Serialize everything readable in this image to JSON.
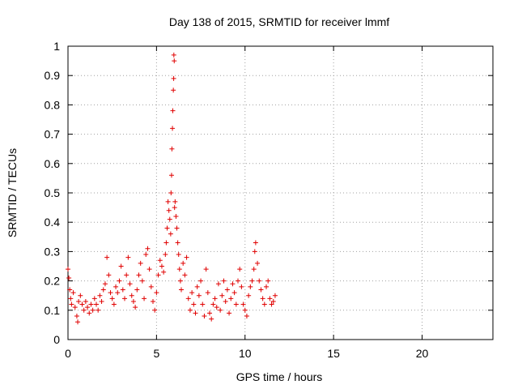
{
  "chart_data": {
    "type": "scatter",
    "title": "Day 138 of 2015, SRMTID for receiver lmmf",
    "xlabel": "GPS time / hours",
    "ylabel": "SRMTID / TECUs",
    "xlim": [
      0,
      24
    ],
    "ylim": [
      0,
      1
    ],
    "xticks": [
      "0",
      "5",
      "10",
      "15",
      "20"
    ],
    "xtick_values": [
      0,
      5,
      10,
      15,
      20
    ],
    "yticks": [
      "0",
      "0.1",
      "0.2",
      "0.3",
      "0.4",
      "0.5",
      "0.6",
      "0.7",
      "0.8",
      "0.9",
      "1"
    ],
    "ytick_values": [
      0,
      0.1,
      0.2,
      0.3,
      0.4,
      0.5,
      0.6,
      0.7,
      0.8,
      0.9,
      1
    ],
    "grid": true,
    "marker": "plus",
    "marker_color": "#e00000",
    "series": [
      {
        "points": [
          [
            0.0,
            0.24
          ],
          [
            0.05,
            0.21
          ],
          [
            0.1,
            0.17
          ],
          [
            0.15,
            0.14
          ],
          [
            0.2,
            0.12
          ],
          [
            0.3,
            0.16
          ],
          [
            0.4,
            0.11
          ],
          [
            0.5,
            0.08
          ],
          [
            0.55,
            0.06
          ],
          [
            0.6,
            0.13
          ],
          [
            0.7,
            0.15
          ],
          [
            0.8,
            0.12
          ],
          [
            0.9,
            0.1
          ],
          [
            1.0,
            0.13
          ],
          [
            1.1,
            0.11
          ],
          [
            1.2,
            0.09
          ],
          [
            1.3,
            0.12
          ],
          [
            1.4,
            0.1
          ],
          [
            1.5,
            0.14
          ],
          [
            1.6,
            0.12
          ],
          [
            1.7,
            0.1
          ],
          [
            1.8,
            0.15
          ],
          [
            1.9,
            0.13
          ],
          [
            2.0,
            0.17
          ],
          [
            2.1,
            0.19
          ],
          [
            2.2,
            0.28
          ],
          [
            2.3,
            0.22
          ],
          [
            2.4,
            0.16
          ],
          [
            2.5,
            0.14
          ],
          [
            2.6,
            0.12
          ],
          [
            2.7,
            0.18
          ],
          [
            2.8,
            0.16
          ],
          [
            2.9,
            0.2
          ],
          [
            3.0,
            0.25
          ],
          [
            3.1,
            0.17
          ],
          [
            3.2,
            0.14
          ],
          [
            3.3,
            0.22
          ],
          [
            3.4,
            0.28
          ],
          [
            3.5,
            0.19
          ],
          [
            3.6,
            0.15
          ],
          [
            3.7,
            0.13
          ],
          [
            3.8,
            0.11
          ],
          [
            3.9,
            0.17
          ],
          [
            4.0,
            0.22
          ],
          [
            4.1,
            0.26
          ],
          [
            4.2,
            0.2
          ],
          [
            4.3,
            0.14
          ],
          [
            4.4,
            0.29
          ],
          [
            4.5,
            0.31
          ],
          [
            4.6,
            0.24
          ],
          [
            4.7,
            0.18
          ],
          [
            4.8,
            0.13
          ],
          [
            4.9,
            0.1
          ],
          [
            5.0,
            0.16
          ],
          [
            5.1,
            0.22
          ],
          [
            5.2,
            0.27
          ],
          [
            5.3,
            0.25
          ],
          [
            5.4,
            0.23
          ],
          [
            5.5,
            0.29
          ],
          [
            5.55,
            0.33
          ],
          [
            5.6,
            0.38
          ],
          [
            5.65,
            0.47
          ],
          [
            5.7,
            0.44
          ],
          [
            5.75,
            0.41
          ],
          [
            5.8,
            0.36
          ],
          [
            5.82,
            0.5
          ],
          [
            5.85,
            0.56
          ],
          [
            5.87,
            0.65
          ],
          [
            5.9,
            0.72
          ],
          [
            5.92,
            0.78
          ],
          [
            5.95,
            0.85
          ],
          [
            5.97,
            0.89
          ],
          [
            5.98,
            0.97
          ],
          [
            6.0,
            0.95
          ],
          [
            6.02,
            0.45
          ],
          [
            6.05,
            0.47
          ],
          [
            6.1,
            0.42
          ],
          [
            6.15,
            0.38
          ],
          [
            6.2,
            0.33
          ],
          [
            6.25,
            0.29
          ],
          [
            6.3,
            0.24
          ],
          [
            6.35,
            0.2
          ],
          [
            6.4,
            0.17
          ],
          [
            6.5,
            0.26
          ],
          [
            6.6,
            0.22
          ],
          [
            6.7,
            0.28
          ],
          [
            6.8,
            0.14
          ],
          [
            6.9,
            0.1
          ],
          [
            7.0,
            0.16
          ],
          [
            7.1,
            0.12
          ],
          [
            7.2,
            0.09
          ],
          [
            7.3,
            0.18
          ],
          [
            7.4,
            0.15
          ],
          [
            7.5,
            0.2
          ],
          [
            7.6,
            0.12
          ],
          [
            7.7,
            0.08
          ],
          [
            7.8,
            0.24
          ],
          [
            7.9,
            0.16
          ],
          [
            8.0,
            0.09
          ],
          [
            8.1,
            0.07
          ],
          [
            8.2,
            0.12
          ],
          [
            8.3,
            0.14
          ],
          [
            8.4,
            0.11
          ],
          [
            8.5,
            0.19
          ],
          [
            8.6,
            0.1
          ],
          [
            8.7,
            0.15
          ],
          [
            8.8,
            0.2
          ],
          [
            8.9,
            0.13
          ],
          [
            9.0,
            0.17
          ],
          [
            9.1,
            0.09
          ],
          [
            9.2,
            0.14
          ],
          [
            9.3,
            0.19
          ],
          [
            9.4,
            0.16
          ],
          [
            9.5,
            0.12
          ],
          [
            9.6,
            0.2
          ],
          [
            9.7,
            0.24
          ],
          [
            9.8,
            0.18
          ],
          [
            9.9,
            0.12
          ],
          [
            10.0,
            0.1
          ],
          [
            10.1,
            0.08
          ],
          [
            10.2,
            0.15
          ],
          [
            10.3,
            0.18
          ],
          [
            10.4,
            0.2
          ],
          [
            10.5,
            0.24
          ],
          [
            10.55,
            0.3
          ],
          [
            10.6,
            0.33
          ],
          [
            10.7,
            0.26
          ],
          [
            10.8,
            0.2
          ],
          [
            10.9,
            0.17
          ],
          [
            11.0,
            0.14
          ],
          [
            11.1,
            0.12
          ],
          [
            11.2,
            0.18
          ],
          [
            11.3,
            0.2
          ],
          [
            11.4,
            0.14
          ],
          [
            11.5,
            0.12
          ],
          [
            11.6,
            0.13
          ],
          [
            11.7,
            0.15
          ]
        ]
      }
    ]
  }
}
